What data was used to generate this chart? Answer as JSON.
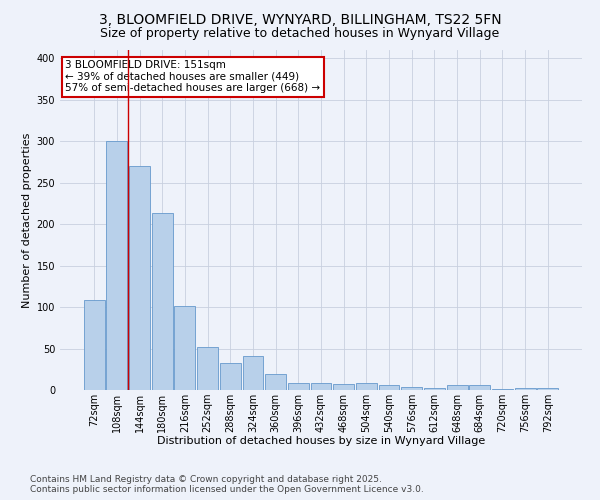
{
  "title": "3, BLOOMFIELD DRIVE, WYNYARD, BILLINGHAM, TS22 5FN",
  "subtitle": "Size of property relative to detached houses in Wynyard Village",
  "xlabel": "Distribution of detached houses by size in Wynyard Village",
  "ylabel": "Number of detached properties",
  "footer1": "Contains HM Land Registry data © Crown copyright and database right 2025.",
  "footer2": "Contains public sector information licensed under the Open Government Licence v3.0.",
  "categories": [
    "72sqm",
    "108sqm",
    "144sqm",
    "180sqm",
    "216sqm",
    "252sqm",
    "288sqm",
    "324sqm",
    "360sqm",
    "396sqm",
    "432sqm",
    "468sqm",
    "504sqm",
    "540sqm",
    "576sqm",
    "612sqm",
    "648sqm",
    "684sqm",
    "720sqm",
    "756sqm",
    "792sqm"
  ],
  "values": [
    109,
    300,
    270,
    213,
    101,
    52,
    32,
    41,
    19,
    8,
    8,
    7,
    9,
    6,
    4,
    3,
    6,
    6,
    1,
    2,
    3
  ],
  "bar_color": "#b8d0ea",
  "bar_edge_color": "#6699cc",
  "background_color": "#eef2fa",
  "grid_color": "#c8d0df",
  "vline_x": 1.5,
  "vline_color": "#cc0000",
  "annotation_text": "3 BLOOMFIELD DRIVE: 151sqm\n← 39% of detached houses are smaller (449)\n57% of semi-detached houses are larger (668) →",
  "annotation_box_color": "#cc0000",
  "annotation_fill": "white",
  "ylim": [
    0,
    410
  ],
  "yticks": [
    0,
    50,
    100,
    150,
    200,
    250,
    300,
    350,
    400
  ],
  "title_fontsize": 10,
  "subtitle_fontsize": 9,
  "axis_label_fontsize": 8,
  "tick_fontsize": 7,
  "annotation_fontsize": 7.5,
  "footer_fontsize": 6.5
}
